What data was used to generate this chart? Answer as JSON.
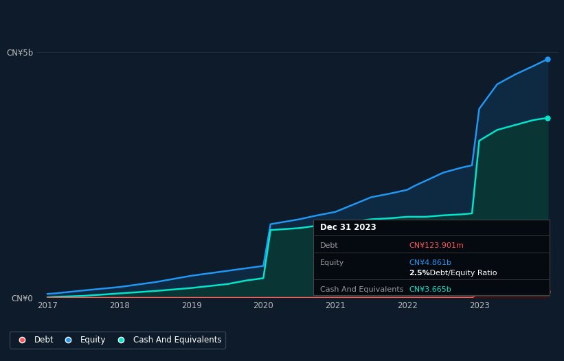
{
  "background_color": "#0d1b2a",
  "equity_color": "#2196f3",
  "equity_fill": "#0d2a42",
  "cash_color": "#00e5cc",
  "cash_fill": "#0a3535",
  "debt_color": "#ff5555",
  "grid_color": "#1a2d40",
  "ylabel_top": "CN¥5b",
  "ylabel_bottom": "CN¥0",
  "x_ticks": [
    "2017",
    "2018",
    "2019",
    "2020",
    "2021",
    "2022",
    "2023"
  ],
  "legend_items": [
    "Debt",
    "Equity",
    "Cash And Equivalents"
  ],
  "legend_colors": [
    "#ff5555",
    "#2196f3",
    "#00e5cc"
  ],
  "annotation_title": "Dec 31 2023",
  "ann_debt_label": "Debt",
  "ann_debt_value": "CN¥123.901m",
  "ann_debt_color": "#ff5555",
  "ann_equity_label": "Equity",
  "ann_equity_value": "CN¥4.861b",
  "ann_equity_color": "#2196f3",
  "ann_ratio_bold": "2.5%",
  "ann_ratio_rest": " Debt/Equity Ratio",
  "ann_cash_label": "Cash And Equivalents",
  "ann_cash_value": "CN¥3.665b",
  "ann_cash_color": "#00e5cc",
  "years": [
    2017.0,
    2017.1,
    2017.5,
    2018.0,
    2018.5,
    2019.0,
    2019.5,
    2019.75,
    2020.0,
    2020.1,
    2020.5,
    2020.75,
    2021.0,
    2021.25,
    2021.5,
    2021.75,
    2022.0,
    2022.1,
    2022.25,
    2022.5,
    2022.75,
    2022.9,
    2023.0,
    2023.25,
    2023.5,
    2023.75,
    2023.95
  ],
  "equity": [
    0.08,
    0.09,
    0.15,
    0.22,
    0.32,
    0.45,
    0.55,
    0.6,
    0.65,
    1.5,
    1.6,
    1.68,
    1.75,
    1.9,
    2.05,
    2.12,
    2.2,
    2.28,
    2.38,
    2.55,
    2.65,
    2.7,
    3.85,
    4.35,
    4.55,
    4.72,
    4.861
  ],
  "cash": [
    0.01,
    0.02,
    0.04,
    0.09,
    0.14,
    0.2,
    0.28,
    0.35,
    0.4,
    1.38,
    1.42,
    1.47,
    1.55,
    1.55,
    1.6,
    1.62,
    1.65,
    1.65,
    1.65,
    1.68,
    1.7,
    1.72,
    3.2,
    3.42,
    3.52,
    3.62,
    3.665
  ],
  "debt": [
    0.003,
    0.003,
    0.003,
    0.003,
    0.003,
    0.003,
    0.003,
    0.003,
    0.003,
    0.003,
    0.003,
    0.003,
    0.005,
    0.005,
    0.005,
    0.005,
    0.005,
    0.005,
    0.005,
    0.005,
    0.005,
    0.005,
    0.08,
    0.1,
    0.11,
    0.12,
    0.124
  ],
  "ylim": [
    0,
    5.0
  ],
  "xlim": [
    2016.85,
    2024.1
  ]
}
